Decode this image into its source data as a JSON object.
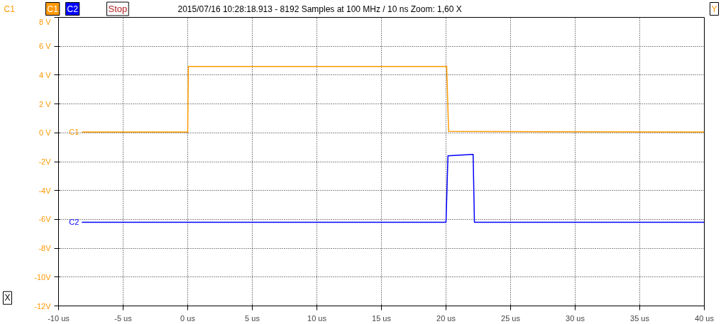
{
  "chart_data": {
    "type": "line",
    "title": "2015/07/16 10:28:18.913 - 8192 Samples at 100 MHz / 10 ns Zoom: 1,60 X",
    "annotations": [
      "C1",
      "C2",
      "Stop",
      "C1",
      "Y",
      "X"
    ],
    "series": [
      {
        "name": "C1",
        "color": "#ff9900",
        "x": [
          -8.2,
          0.0,
          0.05,
          20.05,
          20.2,
          40.0
        ],
        "values": [
          0.05,
          0.05,
          4.6,
          4.6,
          0.1,
          0.05
        ]
      },
      {
        "name": "C2",
        "color": "#0000ff",
        "x": [
          -8.2,
          20.0,
          20.15,
          22.1,
          22.2,
          40.0
        ],
        "values": [
          -6.2,
          -6.2,
          -1.6,
          -1.5,
          -6.2,
          -6.2
        ]
      }
    ],
    "xlim": [
      -10,
      40
    ],
    "ylim": [
      -12,
      8
    ],
    "xticks": [
      {
        "value": -10,
        "label": "-10 us"
      },
      {
        "value": -5,
        "label": "-5 us"
      },
      {
        "value": 0,
        "label": "0 us"
      },
      {
        "value": 5,
        "label": "5 us"
      },
      {
        "value": 10,
        "label": "10 us"
      },
      {
        "value": 15,
        "label": "15 us"
      },
      {
        "value": 20,
        "label": "20 us"
      },
      {
        "value": 25,
        "label": "25 us"
      },
      {
        "value": 30,
        "label": "30 us"
      },
      {
        "value": 35,
        "label": "35 us"
      },
      {
        "value": 40,
        "label": "40 us"
      }
    ],
    "yticks": [
      {
        "value": 8,
        "label": "8 V"
      },
      {
        "value": 6,
        "label": "6 V"
      },
      {
        "value": 4,
        "label": "4 V"
      },
      {
        "value": 2,
        "label": "2 V"
      },
      {
        "value": 0,
        "label": "0 V"
      },
      {
        "value": -2,
        "label": "-2V"
      },
      {
        "value": -4,
        "label": "-4V"
      },
      {
        "value": -6,
        "label": "-6V"
      },
      {
        "value": -8,
        "label": "-8V"
      },
      {
        "value": -10,
        "label": "-10V"
      },
      {
        "value": -12,
        "label": "-12V"
      }
    ],
    "grid": true,
    "marker": "none",
    "line_style": "solid"
  }
}
